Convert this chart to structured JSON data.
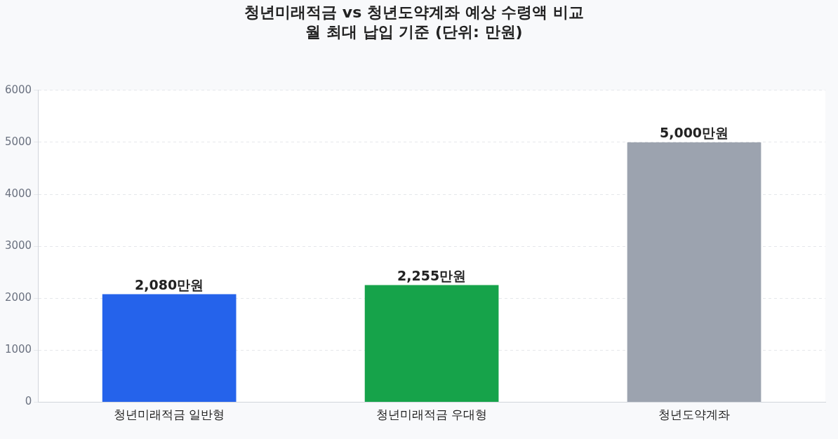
{
  "chart_data": {
    "type": "bar",
    "title": "청년미래적금 vs 청년도약계좌 예상 수령액 비교",
    "subtitle": "월 최대 납입 기준 (단위: 만원)",
    "categories": [
      "청년미래적금 일반형",
      "청년미래적금 우대형",
      "청년도약계좌"
    ],
    "values": [
      2080,
      2255,
      5000
    ],
    "colors": [
      "#2563eb",
      "#16a34a",
      "#9ca3af"
    ],
    "value_labels": [
      "2,080만원",
      "2,255만원",
      "5,000만원"
    ],
    "ylim": [
      0,
      6000
    ],
    "yticks": [
      0,
      1000,
      2000,
      3000,
      4000,
      5000,
      6000
    ],
    "grid": "y",
    "legend": false
  }
}
